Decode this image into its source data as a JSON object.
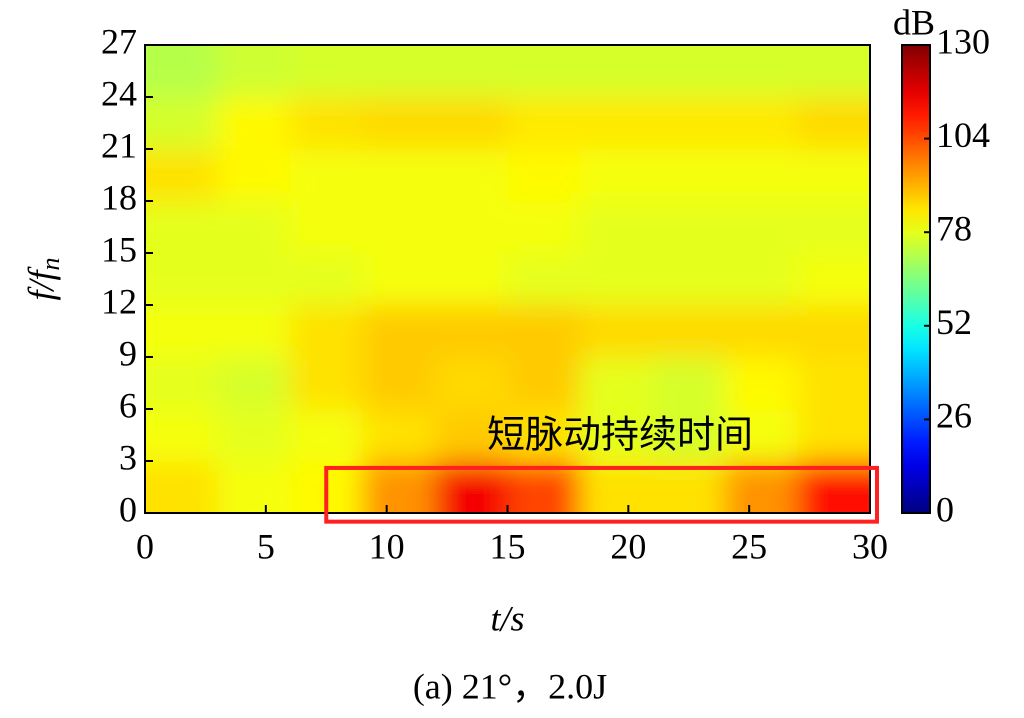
{
  "chart_data": {
    "type": "heatmap",
    "x_label": "t/s",
    "y_label": {
      "main": "f/f",
      "sub": "n"
    },
    "caption": "(a) 21°，2.0J",
    "xbins": [
      0,
      3,
      6,
      9,
      12,
      15,
      18,
      21,
      24,
      27,
      30
    ],
    "ybins": [
      0,
      3,
      6,
      9,
      12,
      15,
      18,
      21,
      24,
      27
    ],
    "z": [
      [
        85,
        80,
        82,
        95,
        115,
        105,
        85,
        85,
        95,
        112
      ],
      [
        80,
        78,
        80,
        85,
        88,
        85,
        78,
        76,
        80,
        85
      ],
      [
        78,
        76,
        85,
        88,
        86,
        88,
        78,
        76,
        82,
        85
      ],
      [
        80,
        80,
        85,
        88,
        88,
        88,
        86,
        86,
        86,
        86
      ],
      [
        78,
        78,
        78,
        80,
        80,
        78,
        78,
        78,
        78,
        80
      ],
      [
        78,
        78,
        80,
        80,
        80,
        80,
        78,
        78,
        78,
        78
      ],
      [
        85,
        82,
        80,
        80,
        80,
        82,
        80,
        80,
        80,
        80
      ],
      [
        76,
        82,
        85,
        86,
        86,
        84,
        84,
        84,
        84,
        86
      ],
      [
        72,
        75,
        76,
        76,
        76,
        76,
        76,
        76,
        76,
        76
      ]
    ],
    "xlim": [
      0,
      30
    ],
    "xticks": [
      0,
      5,
      10,
      15,
      20,
      25,
      30
    ],
    "ylim": [
      0,
      27
    ],
    "yticks": [
      0,
      3,
      6,
      9,
      12,
      15,
      18,
      21,
      24,
      27
    ],
    "colormap": "jet",
    "colorbar": {
      "label": "dB",
      "clim": [
        0,
        130
      ],
      "ticks": [
        0,
        26,
        52,
        78,
        104,
        130
      ]
    },
    "highlight": {
      "x": [
        7.5,
        30
      ],
      "y": [
        -0.5,
        2.6
      ],
      "color": "#ff2020",
      "label": "短脉动持续时间"
    }
  }
}
